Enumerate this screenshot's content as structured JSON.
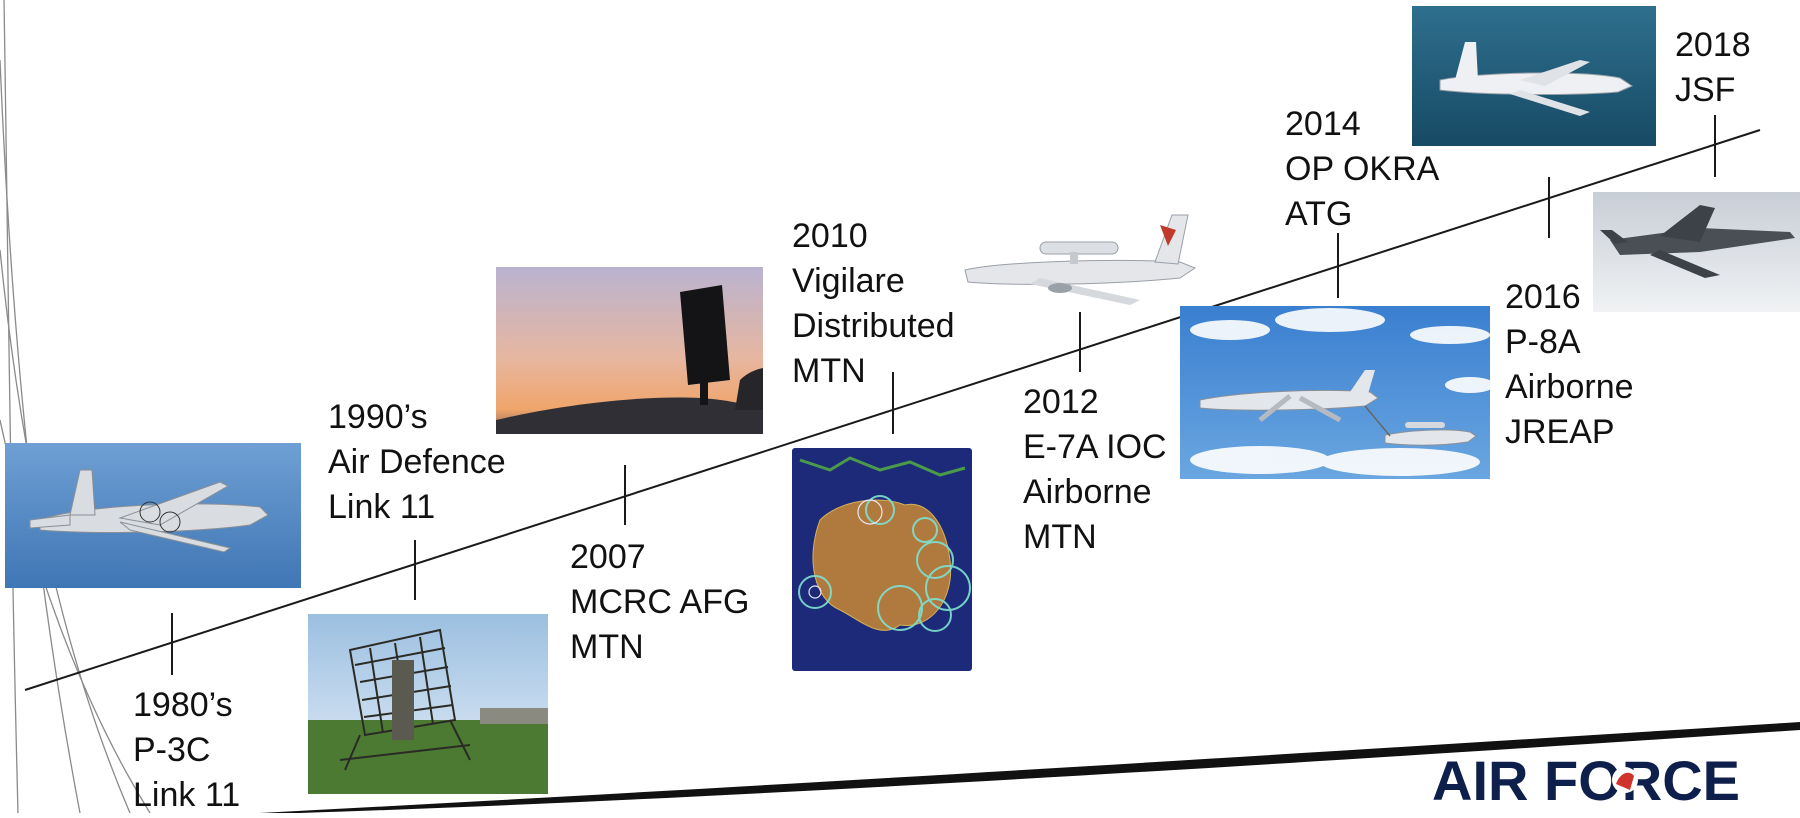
{
  "milestones": [
    {
      "year": "1980’s",
      "lines": [
        "P-3C",
        "Link 11"
      ]
    },
    {
      "year": "1990’s",
      "lines": [
        "Air Defence",
        "Link 11"
      ]
    },
    {
      "year": "2007",
      "lines": [
        "MCRC AFG",
        "MTN"
      ]
    },
    {
      "year": "2010",
      "lines": [
        "Vigilare",
        "Distributed",
        "MTN"
      ]
    },
    {
      "year": "2012",
      "lines": [
        "E-7A IOC",
        "Airborne",
        "MTN"
      ]
    },
    {
      "year": "2014",
      "lines": [
        "OP OKRA",
        "ATG"
      ]
    },
    {
      "year": "2016",
      "lines": [
        "P-8A",
        "Airborne",
        "JREAP"
      ]
    },
    {
      "year": "2018",
      "lines": [
        "JSF"
      ]
    }
  ],
  "photos": [
    {
      "subject": "p-3c-orion-aircraft"
    },
    {
      "subject": "ground-radar-antenna"
    },
    {
      "subject": "radar-at-sunset"
    },
    {
      "subject": "australia-coverage-map"
    },
    {
      "subject": "e-7a-wedgetail-aircraft"
    },
    {
      "subject": "air-to-air-refuelling-formation"
    },
    {
      "subject": "p-8a-poseidon-aircraft"
    },
    {
      "subject": "f-35-jsf-aircraft"
    }
  ],
  "logo": {
    "text": "AIR FORCE"
  },
  "colors": {
    "line": "#1a1a1a",
    "sky": "#4e86c6",
    "sea": "#1f5a78",
    "logo_text": "#0d1f4a",
    "logo_accent": "#d0332b"
  }
}
